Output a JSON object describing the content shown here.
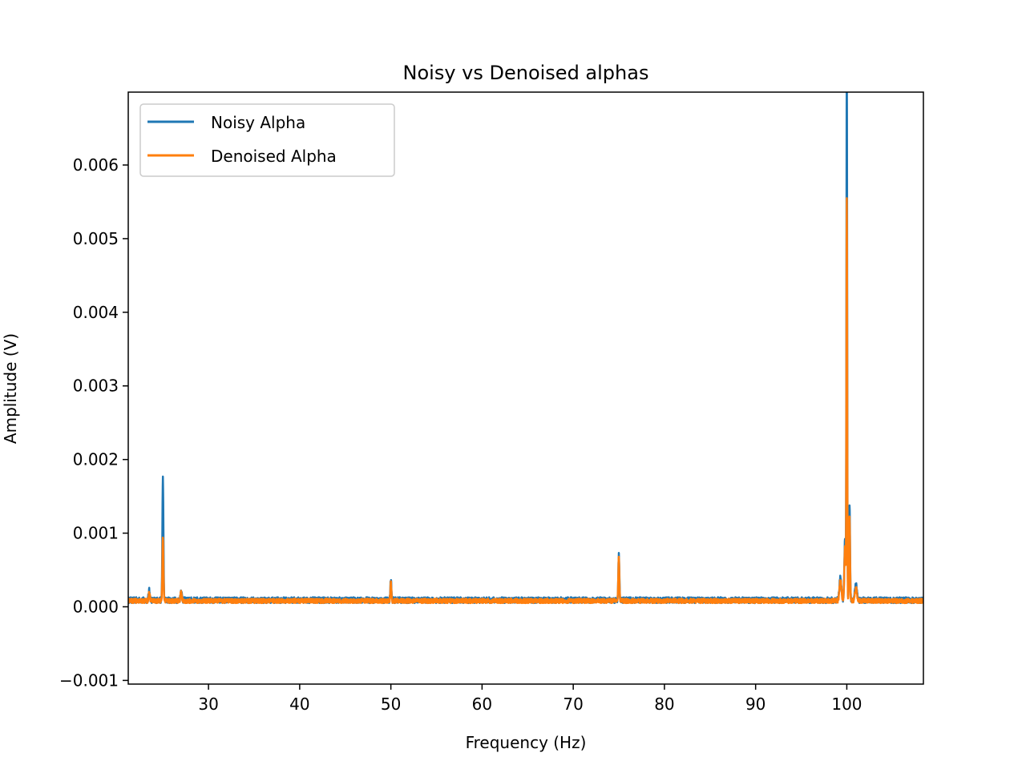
{
  "chart_data": {
    "type": "line",
    "title": "Noisy vs Denoised alphas",
    "xlabel": "Frequency (Hz)",
    "ylabel": "Amplitude (V)",
    "xlim": [
      21.2,
      108.4
    ],
    "ylim": [
      -0.00105,
      0.00699
    ],
    "xticks": [
      30,
      40,
      50,
      60,
      70,
      80,
      90,
      100
    ],
    "xtick_labels": [
      "30",
      "40",
      "50",
      "60",
      "70",
      "80",
      "90",
      "100"
    ],
    "yticks": [
      -0.001,
      0.0,
      0.001,
      0.002,
      0.003,
      0.004,
      0.005,
      0.006
    ],
    "ytick_labels": [
      "−0.001",
      "0.000",
      "0.001",
      "0.002",
      "0.003",
      "0.004",
      "0.005",
      "0.006"
    ],
    "grid": false,
    "legend_position": "top-left",
    "series": [
      {
        "name": "Noisy Alpha",
        "color": "#1f77b4",
        "baseline": 9e-05,
        "noise": 4e-05,
        "peaks": [
          {
            "x": 23.5,
            "y": 0.00022,
            "width": 0.1
          },
          {
            "x": 25.0,
            "y": 0.00175,
            "width": 0.08
          },
          {
            "x": 27.0,
            "y": 0.00022,
            "width": 0.1
          },
          {
            "x": 50.0,
            "y": 0.00037,
            "width": 0.08
          },
          {
            "x": 75.0,
            "y": 0.0007,
            "width": 0.08
          },
          {
            "x": 99.3,
            "y": 0.0004,
            "width": 0.15
          },
          {
            "x": 99.8,
            "y": 0.0009,
            "width": 0.1
          },
          {
            "x": 100.0,
            "y": 0.0075,
            "width": 0.06
          },
          {
            "x": 100.3,
            "y": 0.0014,
            "width": 0.08
          },
          {
            "x": 101.0,
            "y": 0.0003,
            "width": 0.15
          }
        ]
      },
      {
        "name": "Denoised Alpha",
        "color": "#ff7f0e",
        "baseline": 8e-05,
        "noise": 3e-05,
        "peaks": [
          {
            "x": 23.5,
            "y": 0.00018,
            "width": 0.1
          },
          {
            "x": 25.0,
            "y": 0.00093,
            "width": 0.08
          },
          {
            "x": 27.0,
            "y": 0.0002,
            "width": 0.1
          },
          {
            "x": 50.0,
            "y": 0.00032,
            "width": 0.08
          },
          {
            "x": 75.0,
            "y": 0.00068,
            "width": 0.08
          },
          {
            "x": 99.3,
            "y": 0.00035,
            "width": 0.15
          },
          {
            "x": 99.8,
            "y": 0.0008,
            "width": 0.1
          },
          {
            "x": 100.0,
            "y": 0.00553,
            "width": 0.06
          },
          {
            "x": 100.3,
            "y": 0.0012,
            "width": 0.08
          },
          {
            "x": 101.0,
            "y": 0.00025,
            "width": 0.15
          }
        ]
      }
    ]
  }
}
